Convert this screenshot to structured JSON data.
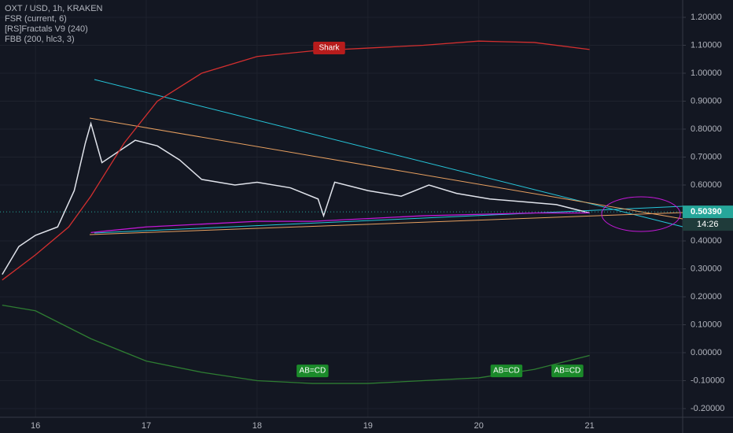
{
  "chart_data": {
    "type": "line",
    "title": "OXT / USD, 1h, KRAKEN",
    "indicators": [
      "FSR (current, 6)",
      "[RS]Fractals V9 (240)",
      "FBB (200, hlc3, 3)"
    ],
    "xlim": [
      15.68,
      21.84
    ],
    "xticks": [
      16,
      17,
      18,
      19,
      20,
      21
    ],
    "ylim": [
      -0.231,
      1.262
    ],
    "yticks": [
      {
        "value": 1.2,
        "label": "1.20000"
      },
      {
        "value": 1.1,
        "label": "1.10000"
      },
      {
        "value": 1.0,
        "label": "1.00000"
      },
      {
        "value": 0.9,
        "label": "0.90000"
      },
      {
        "value": 0.8,
        "label": "0.80000"
      },
      {
        "value": 0.7,
        "label": "0.70000"
      },
      {
        "value": 0.6,
        "label": "0.60000"
      },
      {
        "value": 0.4,
        "label": "0.40000"
      },
      {
        "value": 0.3,
        "label": "0.30000"
      },
      {
        "value": 0.2,
        "label": "0.20000"
      },
      {
        "value": 0.1,
        "label": "0.10000"
      },
      {
        "value": 0,
        "label": "0.00000"
      },
      {
        "value": -0.1,
        "label": "-0.10000"
      },
      {
        "value": -0.2,
        "label": "-0.20000"
      }
    ],
    "grid": true,
    "series": [
      {
        "color": "#e0e3eb",
        "x": [
          15.7,
          15.85,
          16.0,
          16.2,
          16.35,
          16.45,
          16.5,
          16.6,
          16.75,
          16.9,
          17.1,
          17.3,
          17.5,
          17.8,
          18.0,
          18.3,
          18.55,
          18.6,
          18.7,
          19.0,
          19.3,
          19.55,
          19.8,
          20.1,
          20.4,
          20.7,
          21.0
        ],
        "values": [
          0.28,
          0.38,
          0.42,
          0.45,
          0.58,
          0.75,
          0.82,
          0.68,
          0.72,
          0.76,
          0.74,
          0.69,
          0.62,
          0.6,
          0.61,
          0.59,
          0.55,
          0.49,
          0.61,
          0.58,
          0.56,
          0.6,
          0.57,
          0.55,
          0.54,
          0.53,
          0.5
        ]
      },
      {
        "color": "#d32f2f",
        "x": [
          15.7,
          16.0,
          16.3,
          16.5,
          16.8,
          17.1,
          17.5,
          18.0,
          18.5,
          19.0,
          19.5,
          20.0,
          20.5,
          21.0
        ],
        "values": [
          0.26,
          0.35,
          0.45,
          0.56,
          0.75,
          0.9,
          1.0,
          1.06,
          1.08,
          1.09,
          1.1,
          1.115,
          1.11,
          1.085
        ]
      },
      {
        "color": "#c218d6",
        "x": [
          16.5,
          17.0,
          17.5,
          18.0,
          18.5,
          19.0,
          19.5,
          20.0,
          20.5,
          21.0
        ],
        "values": [
          0.43,
          0.45,
          0.46,
          0.47,
          0.47,
          0.48,
          0.49,
          0.495,
          0.5,
          0.5
        ]
      },
      {
        "color": "#2e7d32",
        "x": [
          15.7,
          16.0,
          16.5,
          17.0,
          17.5,
          18.0,
          18.5,
          19.0,
          19.5,
          20.0,
          20.5,
          21.0
        ],
        "values": [
          0.17,
          0.15,
          0.05,
          -0.03,
          -0.07,
          -0.1,
          -0.11,
          -0.11,
          -0.1,
          -0.09,
          -0.06,
          -0.01
        ]
      }
    ],
    "last_price": {
      "value": 0.5039,
      "label": "0.50390"
    },
    "countdown": "14:26",
    "annotations": [
      {
        "text": "Shark",
        "x": 18.65,
        "y": 1.09,
        "color": "#b71c1c"
      },
      {
        "text": "AB=CD",
        "x": 18.5,
        "y": -0.065,
        "color": "#1b8a2a"
      },
      {
        "text": "AB=CD",
        "x": 20.25,
        "y": -0.065,
        "color": "#1b8a2a"
      },
      {
        "text": "AB=CD",
        "x": 20.8,
        "y": -0.065,
        "color": "#1b8a2a"
      }
    ]
  }
}
